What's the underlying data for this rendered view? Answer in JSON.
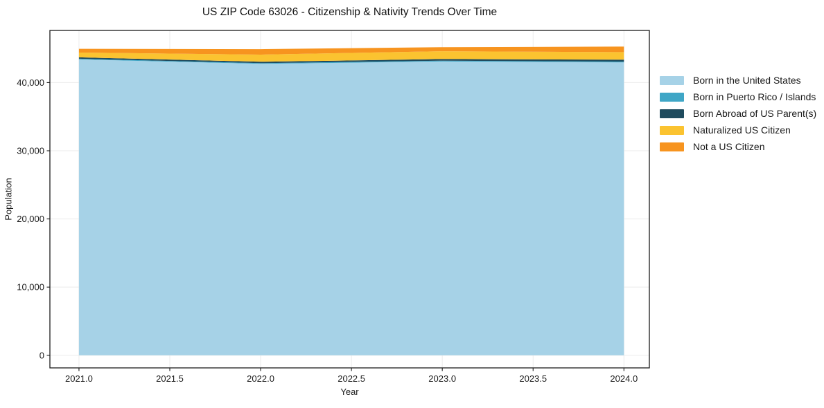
{
  "chart_data": {
    "type": "area",
    "stacked": true,
    "title": "US ZIP Code 63026 - Citizenship & Nativity Trends Over Time",
    "xlabel": "Year",
    "ylabel": "Population",
    "x": [
      2021,
      2022,
      2023,
      2024
    ],
    "series": [
      {
        "name": "Born in the United States",
        "color": "#A6D2E7",
        "values": [
          43400,
          42750,
          43100,
          42950
        ]
      },
      {
        "name": "Born in Puerto Rico / Islands",
        "color": "#3FA6C6",
        "values": [
          100,
          100,
          120,
          130
        ]
      },
      {
        "name": "Born Abroad of US Parent(s)",
        "color": "#1F4B5E",
        "values": [
          200,
          200,
          230,
          280
        ]
      },
      {
        "name": "Naturalized US Citizen",
        "color": "#FBC330",
        "values": [
          700,
          1050,
          1150,
          1100
        ]
      },
      {
        "name": "Not a US Citizen",
        "color": "#F7941F",
        "values": [
          550,
          800,
          600,
          820
        ]
      }
    ],
    "xlim": [
      2020.84,
      2024.14
    ],
    "ylim": [
      -1850,
      47650
    ],
    "xticks": [
      2021.0,
      2021.5,
      2022.0,
      2022.5,
      2023.0,
      2023.5,
      2024.0
    ],
    "xtick_labels": [
      "2021.0",
      "2021.5",
      "2022.0",
      "2022.5",
      "2023.0",
      "2023.5",
      "2024.0"
    ],
    "yticks": [
      0,
      10000,
      20000,
      30000,
      40000
    ],
    "ytick_labels": [
      "0",
      "10,000",
      "20,000",
      "30,000",
      "40,000"
    ],
    "grid": true,
    "grid_color": "#ebebeb",
    "frame_color": "#1a1a1a",
    "legend_position": "right-outside"
  }
}
